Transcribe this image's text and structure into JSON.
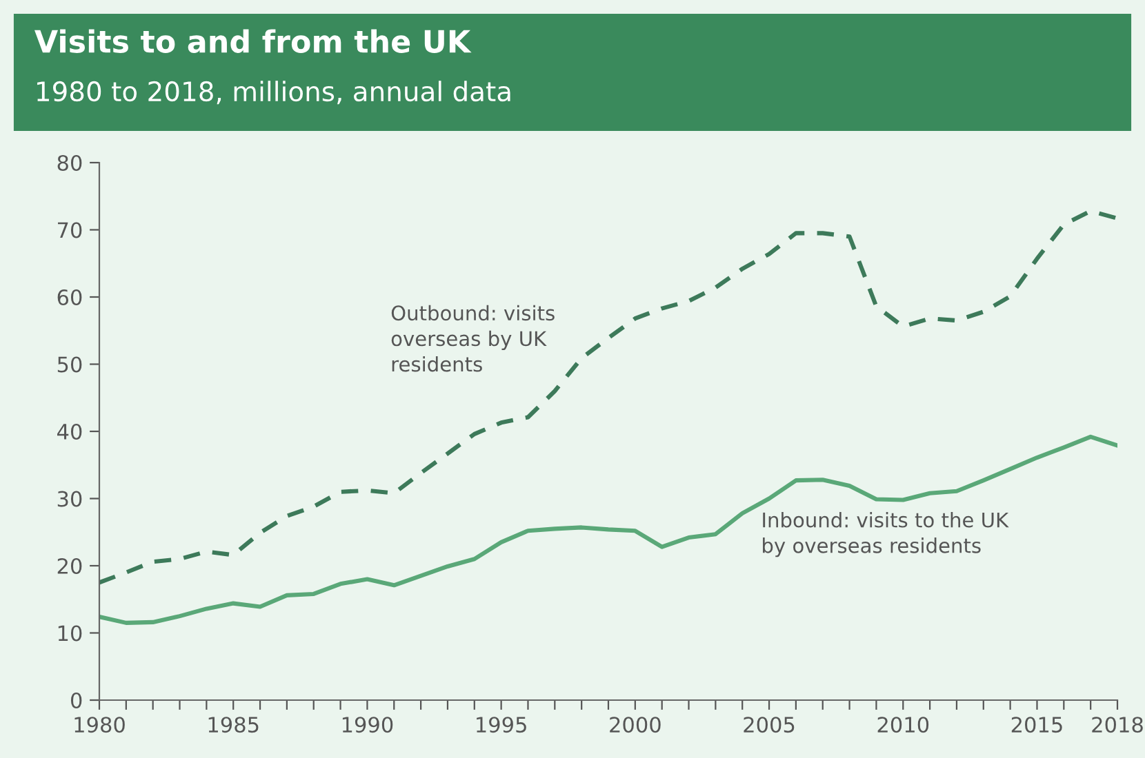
{
  "chart_data": {
    "type": "line",
    "title": "Visits to and from the UK",
    "subtitle": "1980 to 2018, millions, annual data",
    "x": [
      1980,
      1981,
      1982,
      1983,
      1984,
      1985,
      1986,
      1987,
      1988,
      1989,
      1990,
      1991,
      1992,
      1993,
      1994,
      1995,
      1996,
      1997,
      1998,
      1999,
      2000,
      2001,
      2002,
      2003,
      2004,
      2005,
      2006,
      2007,
      2008,
      2009,
      2010,
      2011,
      2012,
      2013,
      2014,
      2015,
      2016,
      2017,
      2018
    ],
    "series": [
      {
        "name": "Outbound: visits\noverseas by UK\nresidents",
        "color": "#3d7a5a",
        "line_style": "dashed",
        "values": [
          17.5,
          19.0,
          20.6,
          21.0,
          22.1,
          21.6,
          24.9,
          27.4,
          28.8,
          31.0,
          31.2,
          30.8,
          33.8,
          36.7,
          39.6,
          41.3,
          42.1,
          46.0,
          50.9,
          53.9,
          56.8,
          58.3,
          59.4,
          61.4,
          64.2,
          66.4,
          69.5,
          69.5,
          69.0,
          58.6,
          55.6,
          56.8,
          56.5,
          57.8,
          60.1,
          65.7,
          70.8,
          72.8,
          71.7
        ]
      },
      {
        "name": "Inbound: visits to the UK\nby overseas residents",
        "color": "#5aa878",
        "line_style": "solid",
        "values": [
          12.4,
          11.5,
          11.6,
          12.5,
          13.6,
          14.4,
          13.9,
          15.6,
          15.8,
          17.3,
          18.0,
          17.1,
          18.5,
          19.9,
          21.0,
          23.5,
          25.2,
          25.5,
          25.7,
          25.4,
          25.2,
          22.8,
          24.2,
          24.7,
          27.8,
          30.0,
          32.7,
          32.8,
          31.9,
          29.9,
          29.8,
          30.8,
          31.1,
          32.7,
          34.4,
          36.1,
          37.6,
          39.2,
          37.9
        ]
      }
    ],
    "xlim": [
      1980,
      2018
    ],
    "xticks": [
      1980,
      {
        "value": 1981,
        "label": null
      },
      {
        "value": 1982,
        "label": null
      },
      {
        "value": 1983,
        "label": null
      },
      {
        "value": 1984,
        "label": null
      },
      1985,
      {
        "value": 1986,
        "label": null
      },
      {
        "value": 1987,
        "label": null
      },
      {
        "value": 1988,
        "label": null
      },
      {
        "value": 1989,
        "label": null
      },
      1990,
      {
        "value": 1991,
        "label": null
      },
      {
        "value": 1992,
        "label": null
      },
      {
        "value": 1993,
        "label": null
      },
      {
        "value": 1994,
        "label": null
      },
      1995,
      {
        "value": 1996,
        "label": null
      },
      {
        "value": 1997,
        "label": null
      },
      {
        "value": 1998,
        "label": null
      },
      {
        "value": 1999,
        "label": null
      },
      2000,
      {
        "value": 2001,
        "label": null
      },
      {
        "value": 2002,
        "label": null
      },
      {
        "value": 2003,
        "label": null
      },
      {
        "value": 2004,
        "label": null
      },
      2005,
      {
        "value": 2006,
        "label": null
      },
      {
        "value": 2007,
        "label": null
      },
      {
        "value": 2008,
        "label": null
      },
      {
        "value": 2009,
        "label": null
      },
      2010,
      {
        "value": 2011,
        "label": null
      },
      {
        "value": 2012,
        "label": null
      },
      {
        "value": 2013,
        "label": null
      },
      {
        "value": 2014,
        "label": null
      },
      2015,
      {
        "value": 2016,
        "label": null
      },
      {
        "value": 2017,
        "label": null
      },
      2018
    ],
    "ylim": [
      0,
      80
    ],
    "yticks": [
      0,
      10,
      20,
      30,
      40,
      50,
      60,
      70,
      80
    ],
    "grid": false,
    "legend": false,
    "marker": "none"
  }
}
